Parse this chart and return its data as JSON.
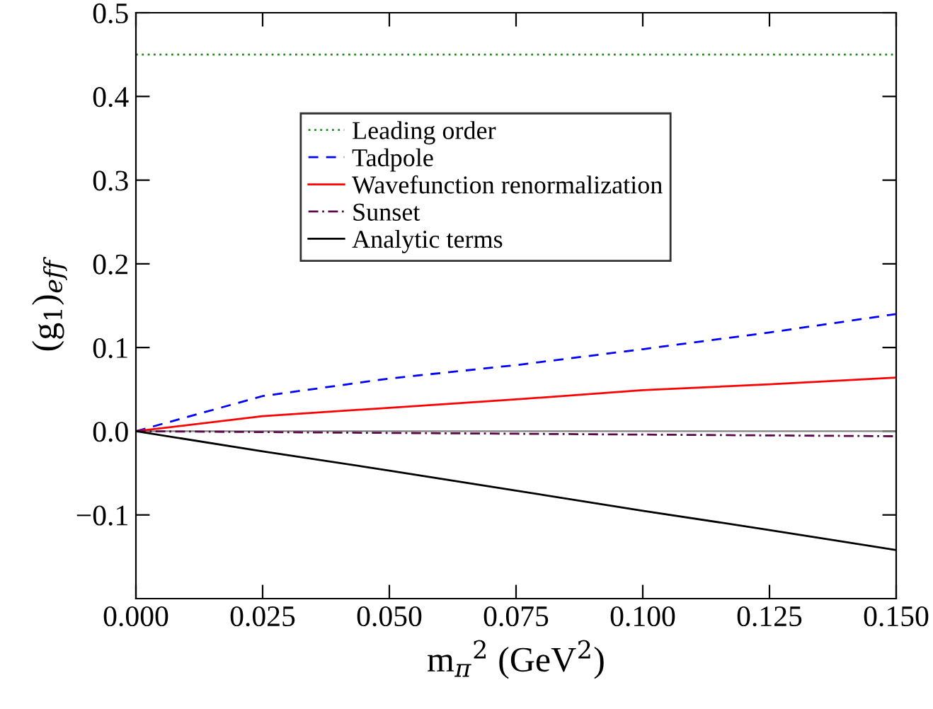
{
  "chart_data": {
    "type": "line",
    "xlabel": "m$_{π}$$^{2}$ (GeV$^{2}$)",
    "ylabel": "(g$_{1}$)$_{eff}$",
    "x": [
      0,
      0.025,
      0.05,
      0.075,
      0.1,
      0.125,
      0.15
    ],
    "series": [
      {
        "name": "Leading order",
        "color": "#228b22",
        "line_style": "dotted",
        "values": [
          0.45,
          0.45,
          0.45,
          0.45,
          0.45,
          0.45,
          0.45
        ]
      },
      {
        "name": "Tadpole",
        "color": "#0000ff",
        "line_style": "dashed",
        "values": [
          0,
          0.042,
          0.063,
          0.079,
          0.098,
          0.118,
          0.14
        ]
      },
      {
        "name": "Wavefunction renormalization",
        "color": "#ff0000",
        "line_style": "solid",
        "values": [
          0,
          0.018,
          0.028,
          0.038,
          0.049,
          0.056,
          0.064
        ]
      },
      {
        "name": "Sunset",
        "color": "#5a0a4a",
        "line_style": "dashdot",
        "values": [
          0,
          -0.001,
          -0.002,
          -0.003,
          -0.004,
          -0.005,
          -0.006
        ]
      },
      {
        "name": "Analytic terms",
        "color": "#000000",
        "line_style": "solid",
        "values": [
          0,
          -0.024,
          -0.047,
          -0.071,
          -0.095,
          -0.118,
          -0.142
        ]
      }
    ],
    "xlim": [
      0,
      0.15
    ],
    "xticks": [
      {
        "value": 0,
        "label": "0.000"
      },
      {
        "value": 0.025,
        "label": "0.025"
      },
      {
        "value": 0.05,
        "label": "0.050"
      },
      {
        "value": 0.075,
        "label": "0.075"
      },
      {
        "value": 0.1,
        "label": "0.100"
      },
      {
        "value": 0.125,
        "label": "0.125"
      },
      {
        "value": 0.15,
        "label": "0.150"
      }
    ],
    "ylim": [
      -0.2,
      0.5
    ],
    "yticks": [
      {
        "value": -0.1,
        "label": "−0.1"
      },
      {
        "value": 0,
        "label": "0.0"
      },
      0.1,
      0.2,
      0.3,
      0.4,
      0.5
    ],
    "ref_lines": [
      {
        "axis": "y",
        "value": 0,
        "color": "#808080"
      }
    ],
    "legend": "top",
    "grid": false
  }
}
